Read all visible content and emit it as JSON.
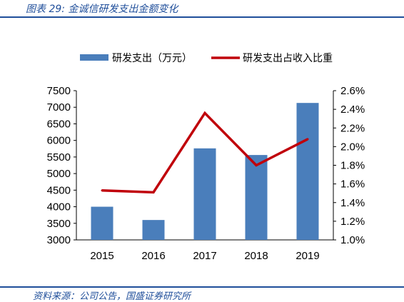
{
  "caption": "图表 29: 金诚信研发支出金额变化",
  "source": "资料来源：公司公告，国盛证券研究所",
  "chart_data": {
    "type": "bar+line",
    "categories": [
      "2015",
      "2016",
      "2017",
      "2018",
      "2019"
    ],
    "series": [
      {
        "name": "研发支出（万元）",
        "type": "bar",
        "axis": "left",
        "color": "#4a7ebb",
        "values": [
          4000,
          3600,
          5760,
          5560,
          7130
        ]
      },
      {
        "name": "研发支出占收入比重",
        "type": "line",
        "axis": "right",
        "color": "#c0000b",
        "values": [
          0.0153,
          0.0151,
          0.0236,
          0.018,
          0.0208
        ]
      }
    ],
    "y_left": {
      "min": 3000,
      "max": 7500,
      "step": 500,
      "tick_labels": [
        "3000",
        "3500",
        "4000",
        "4500",
        "5000",
        "5500",
        "6000",
        "6500",
        "7000",
        "7500"
      ]
    },
    "y_right": {
      "min": 0.01,
      "max": 0.026,
      "step": 0.002,
      "tick_labels": [
        "1.0%",
        "1.2%",
        "1.4%",
        "1.6%",
        "1.8%",
        "2.0%",
        "2.2%",
        "2.4%",
        "2.6%"
      ]
    },
    "grid": false,
    "legend_position": "top"
  }
}
